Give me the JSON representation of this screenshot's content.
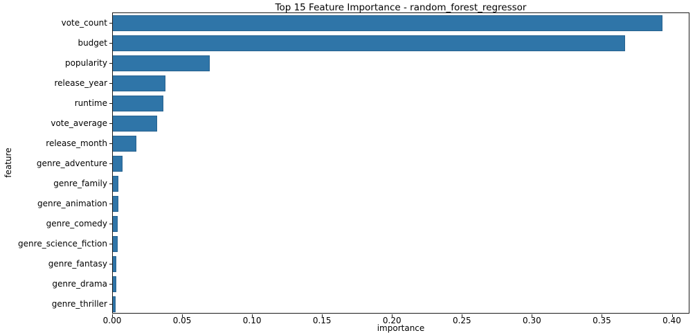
{
  "chart_data": {
    "type": "bar",
    "orientation": "horizontal",
    "title": "Top 15 Feature Importance - random_forest_regressor",
    "xlabel": "importance",
    "ylabel": "feature",
    "categories": [
      "vote_count",
      "budget",
      "popularity",
      "release_year",
      "runtime",
      "vote_average",
      "release_month",
      "genre_adventure",
      "genre_family",
      "genre_animation",
      "genre_comedy",
      "genre_science_fiction",
      "genre_fantasy",
      "genre_drama",
      "genre_thriller"
    ],
    "values": [
      0.393,
      0.366,
      0.0695,
      0.0375,
      0.036,
      0.0315,
      0.017,
      0.0068,
      0.004,
      0.004,
      0.0036,
      0.0036,
      0.0025,
      0.0025,
      0.0021
    ],
    "xlim": [
      0,
      0.4126
    ],
    "xticks": [
      0.0,
      0.05,
      0.1,
      0.15,
      0.2,
      0.25,
      0.3,
      0.35,
      0.4
    ],
    "xtick_labels": [
      "0.00",
      "0.05",
      "0.10",
      "0.15",
      "0.20",
      "0.25",
      "0.30",
      "0.35",
      "0.40"
    ],
    "grid": false,
    "legend": null,
    "bar_color": "#2f75a8",
    "bar_edge_color": "#26618e",
    "spine_color": "#1a1a1a"
  }
}
